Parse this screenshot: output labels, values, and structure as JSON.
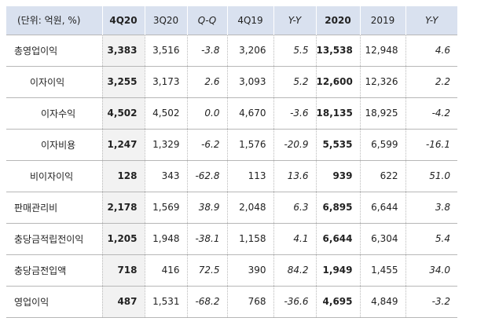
{
  "table": {
    "headers": [
      "(단위: 억원, %)",
      "4Q20",
      "3Q20",
      "Q-Q",
      "4Q19",
      "Y-Y",
      "2020",
      "2019",
      "Y-Y"
    ],
    "rows": [
      {
        "label": "총영업이익",
        "level": 0,
        "values": [
          "3,383",
          "3,516",
          "-3.8",
          "3,206",
          "5.5",
          "13,538",
          "12,948",
          "4.6"
        ]
      },
      {
        "label": "이자이익",
        "level": 1,
        "values": [
          "3,255",
          "3,173",
          "2.6",
          "3,093",
          "5.2",
          "12,600",
          "12,326",
          "2.2"
        ]
      },
      {
        "label": "이자수익",
        "level": 2,
        "values": [
          "4,502",
          "4,502",
          "0.0",
          "4,670",
          "-3.6",
          "18,135",
          "18,925",
          "-4.2"
        ]
      },
      {
        "label": "이자비용",
        "level": 2,
        "values": [
          "1,247",
          "1,329",
          "-6.2",
          "1,576",
          "-20.9",
          "5,535",
          "6,599",
          "-16.1"
        ]
      },
      {
        "label": "비이자이익",
        "level": 1,
        "values": [
          "128",
          "343",
          "-62.8",
          "113",
          "13.6",
          "939",
          "622",
          "51.0"
        ]
      },
      {
        "label": "판매관리비",
        "level": 0,
        "values": [
          "2,178",
          "1,569",
          "38.9",
          "2,048",
          "6.3",
          "6,895",
          "6,644",
          "3.8"
        ]
      },
      {
        "label": "충당금적립전이익",
        "level": 0,
        "values": [
          "1,205",
          "1,948",
          "-38.1",
          "1,158",
          "4.1",
          "6,644",
          "6,304",
          "5.4"
        ]
      },
      {
        "label": "충당금전입액",
        "level": 0,
        "values": [
          "718",
          "416",
          "72.5",
          "390",
          "84.2",
          "1,949",
          "1,455",
          "34.0"
        ]
      },
      {
        "label": "영업이익",
        "level": 0,
        "values": [
          "487",
          "1,531",
          "-68.2",
          "768",
          "-36.6",
          "4,695",
          "4,849",
          "-3.2"
        ]
      }
    ]
  }
}
